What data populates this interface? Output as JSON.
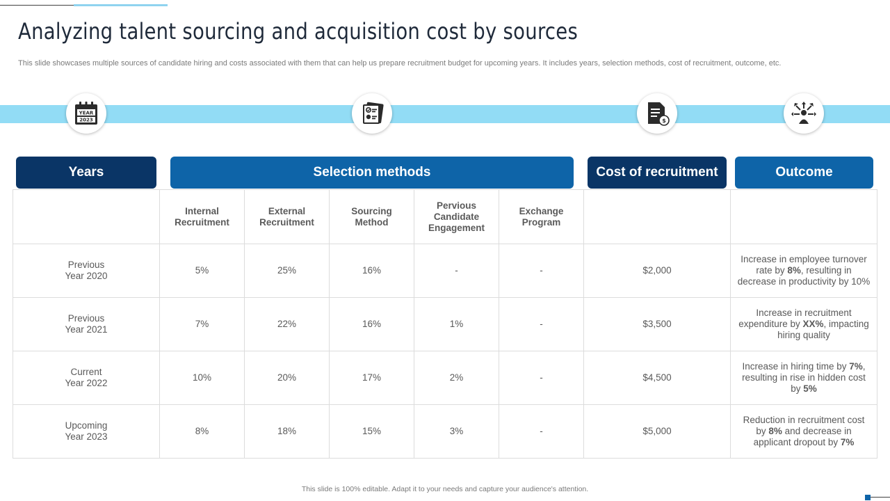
{
  "title": "Analyzing talent sourcing and acquisition cost by sources",
  "subtitle": "This slide showcases multiple sources of candidate hiring and costs associated with them that can help us prepare recruitment budget for upcoming years. It includes years, selection methods, cost of recruitment, outcome, etc.",
  "icons": [
    "calendar-year-icon",
    "checklist-document-icon",
    "invoice-cost-icon",
    "outcome-network-icon"
  ],
  "calendar_icon_text": [
    "YEAR",
    "2023"
  ],
  "headers": {
    "years": "Years",
    "selection_methods": "Selection methods",
    "cost_of_recruitment": "Cost of recruitment",
    "outcome": "Outcome"
  },
  "methods": [
    [
      "Internal",
      "Recruitment"
    ],
    [
      "External",
      "Recruitment"
    ],
    [
      "Sourcing",
      "Method"
    ],
    [
      "Pervious",
      "Candidate",
      "Engagement"
    ],
    [
      "Exchange",
      "Program"
    ]
  ],
  "rows": [
    {
      "year": [
        "Previous",
        "Year 2020"
      ],
      "values": [
        "5%",
        "25%",
        "16%",
        "-",
        "-"
      ],
      "cost": "$2,000",
      "outcome": [
        "Increase in employee turnover",
        "rate by ",
        "8%",
        ", resulting in",
        "decrease in productivity by 10%"
      ]
    },
    {
      "year": [
        "Previous",
        "Year 2021"
      ],
      "values": [
        "7%",
        "22%",
        "16%",
        "1%",
        "-"
      ],
      "cost": "$3,500",
      "outcome": [
        "Increase in recruitment",
        "expenditure by ",
        "XX%",
        ", impacting",
        "hiring quality"
      ]
    },
    {
      "year": [
        "Current",
        "Year 2022"
      ],
      "values": [
        "10%",
        "20%",
        "17%",
        "2%",
        "-"
      ],
      "cost": "$4,500",
      "outcome": [
        "Increase in hiring time by ",
        "7%",
        ",",
        "resulting in rise in hidden cost",
        "by ",
        "5%"
      ]
    },
    {
      "year": [
        "Upcoming",
        "Year 2023"
      ],
      "values": [
        "8%",
        "18%",
        "15%",
        "3%",
        "-"
      ],
      "cost": "$5,000",
      "outcome": [
        "Reduction in recruitment cost",
        "by ",
        "8%",
        " and decrease in",
        "applicant dropout by ",
        "7%"
      ]
    }
  ],
  "footer": "This slide is 100% editable.  Adapt it to your needs and capture your audience's attention.",
  "colors": {
    "navy": "#0a3566",
    "blue": "#0e64a8",
    "band": "#92dcf5"
  }
}
